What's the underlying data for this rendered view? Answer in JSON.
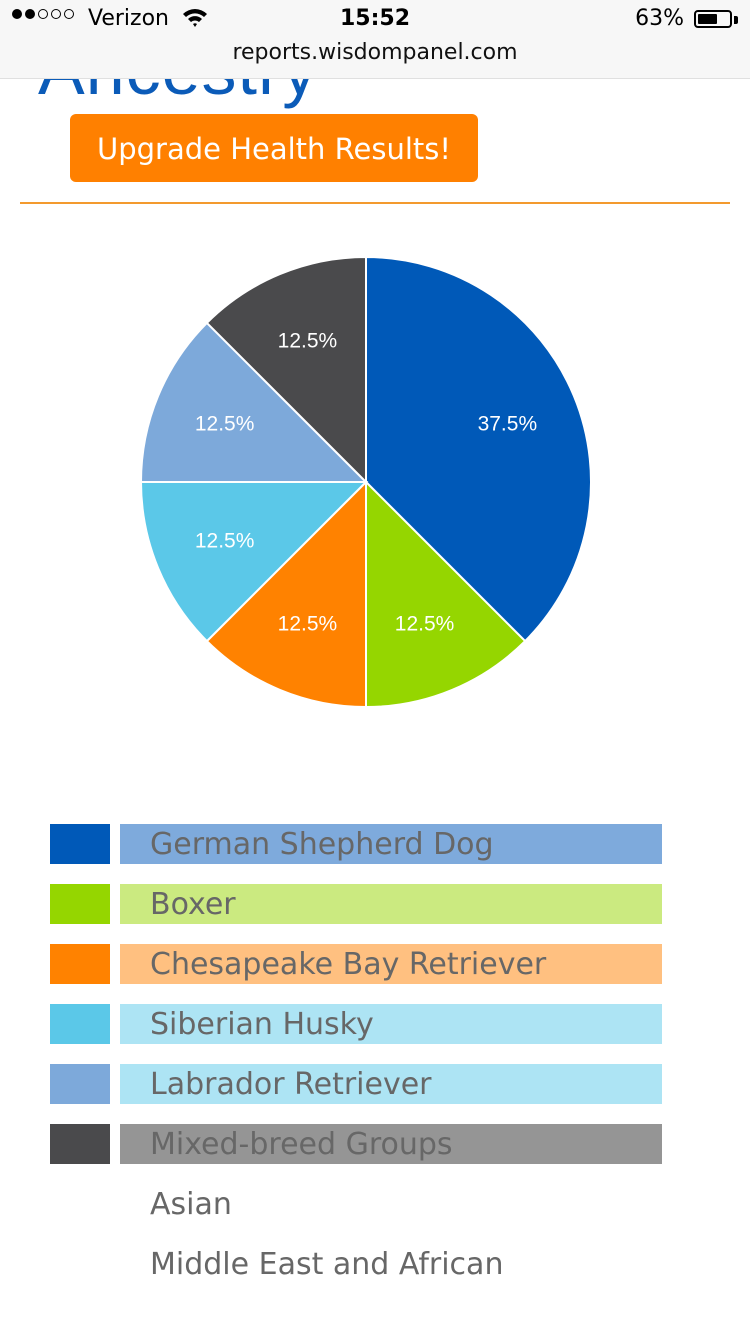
{
  "status_bar": {
    "carrier": "Verizon",
    "signal_bars_filled": 2,
    "signal_bars_total": 5,
    "time": "15:52",
    "battery_percent_text": "63%",
    "battery_level": 0.63
  },
  "browser": {
    "url": "reports.wisdompanel.com"
  },
  "page": {
    "heading": "Ancestry",
    "upgrade_button": "Upgrade Health Results!"
  },
  "chart_data": {
    "type": "pie",
    "slices": [
      {
        "label": "German Shepherd Dog",
        "value": 37.5,
        "value_label": "37.5%",
        "color": "#0059b8"
      },
      {
        "label": "Boxer",
        "value": 12.5,
        "value_label": "12.5%",
        "color": "#95d600"
      },
      {
        "label": "Chesapeake Bay Retriever",
        "value": 12.5,
        "value_label": "12.5%",
        "color": "#ff8200"
      },
      {
        "label": "Siberian Husky",
        "value": 12.5,
        "value_label": "12.5%",
        "color": "#5bc8e8"
      },
      {
        "label": "Labrador Retriever",
        "value": 12.5,
        "value_label": "12.5%",
        "color": "#7da9da"
      },
      {
        "label": "Mixed-breed Groups",
        "value": 12.5,
        "value_label": "12.5%",
        "color": "#4a4a4c"
      }
    ]
  },
  "legend": {
    "items": [
      {
        "label": "German Shepherd Dog",
        "swatch_color": "#0059b8",
        "bar_color": "#7eaadc"
      },
      {
        "label": "Boxer",
        "swatch_color": "#95d600",
        "bar_color": "#cbea80"
      },
      {
        "label": "Chesapeake Bay Retriever",
        "swatch_color": "#ff8200",
        "bar_color": "#ffc080"
      },
      {
        "label": "Siberian Husky",
        "swatch_color": "#5bc8e8",
        "bar_color": "#ade4f4"
      },
      {
        "label": "Labrador Retriever",
        "swatch_color": "#7da9da",
        "bar_color": "#ade4f4"
      },
      {
        "label": "Mixed-breed Groups",
        "swatch_color": "#4a4a4c",
        "bar_color": "#959595"
      }
    ],
    "sub_items": [
      "Asian",
      "Middle East and African"
    ]
  }
}
